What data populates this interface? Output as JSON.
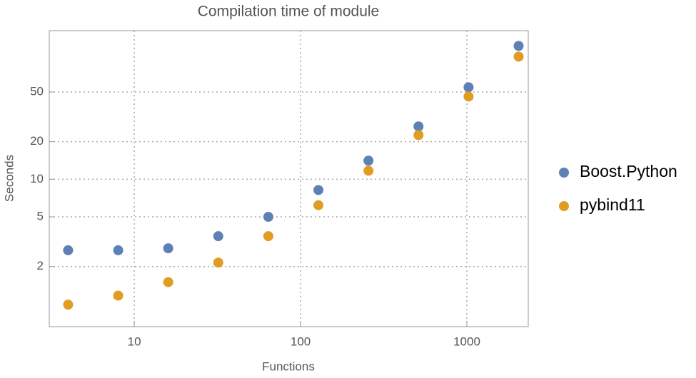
{
  "chart_data": {
    "type": "scatter",
    "title": "Compilation time of module",
    "x_label": "Functions",
    "y_label": "Seconds",
    "x": [
      4,
      8,
      16,
      32,
      64,
      128,
      256,
      512,
      1024,
      2048
    ],
    "series": [
      {
        "name": "Boost.Python",
        "color": "#5e81b5",
        "values": [
          2.7,
          2.7,
          2.8,
          3.5,
          5.0,
          8.2,
          14.1,
          26.5,
          54.6,
          117
        ]
      },
      {
        "name": "pybind11",
        "color": "#e19c24",
        "values": [
          0.99,
          1.17,
          1.5,
          2.15,
          3.5,
          6.2,
          11.7,
          22.6,
          46,
          96
        ]
      }
    ],
    "x_log": true,
    "y_log": true,
    "xlim": [
      3.08,
      2340
    ],
    "ylim": [
      0.66,
      155
    ],
    "xticks": [
      10,
      100,
      1000
    ],
    "yticks": [
      2,
      5,
      10,
      20,
      50
    ],
    "grid": true,
    "legend": "right"
  }
}
